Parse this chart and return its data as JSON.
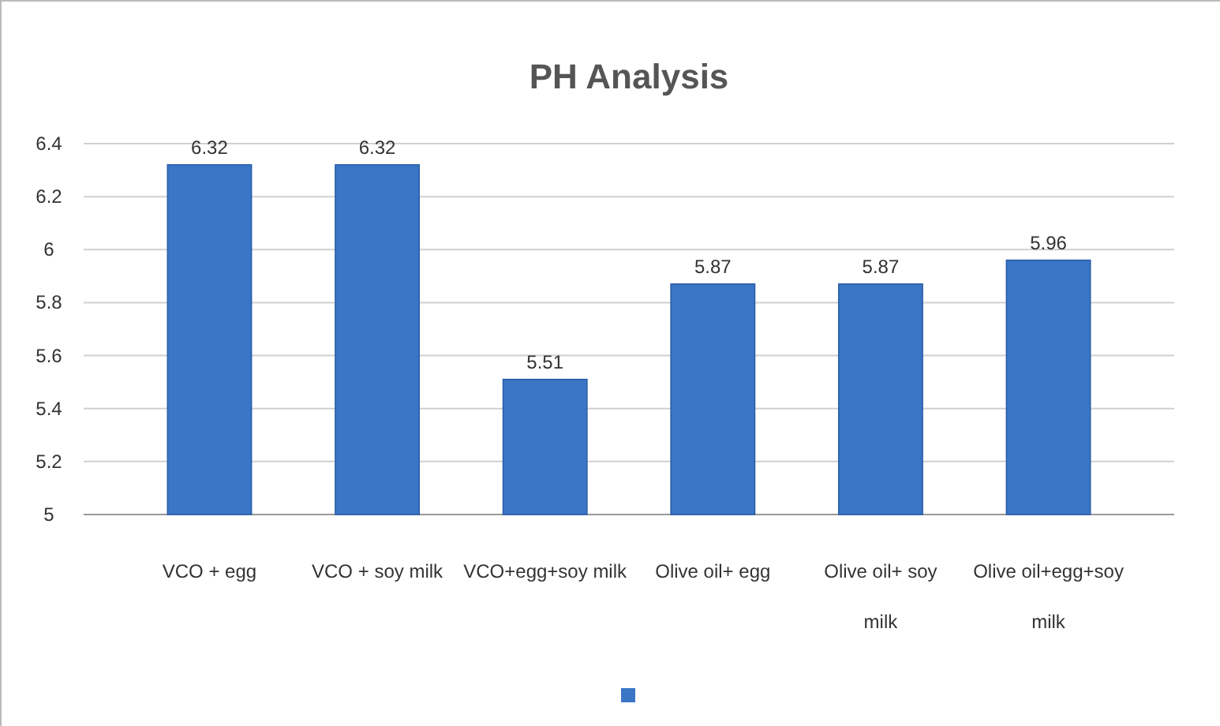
{
  "chart_data": {
    "type": "bar",
    "title": "PH Analysis",
    "categories": [
      "VCO + egg",
      "VCO + soy milk",
      "VCO+egg+soy milk",
      "Olive oil+ egg",
      "Olive oil+ soy milk",
      "Olive oil+egg+soy milk"
    ],
    "values": [
      6.32,
      6.32,
      5.51,
      5.87,
      5.87,
      5.96
    ],
    "color": "#3b76c6",
    "ylim": [
      5,
      6.4
    ],
    "yticks": [
      5,
      5.2,
      5.4,
      5.6,
      5.8,
      6,
      6.2,
      6.4
    ],
    "grid": "y",
    "data_labels": true
  }
}
